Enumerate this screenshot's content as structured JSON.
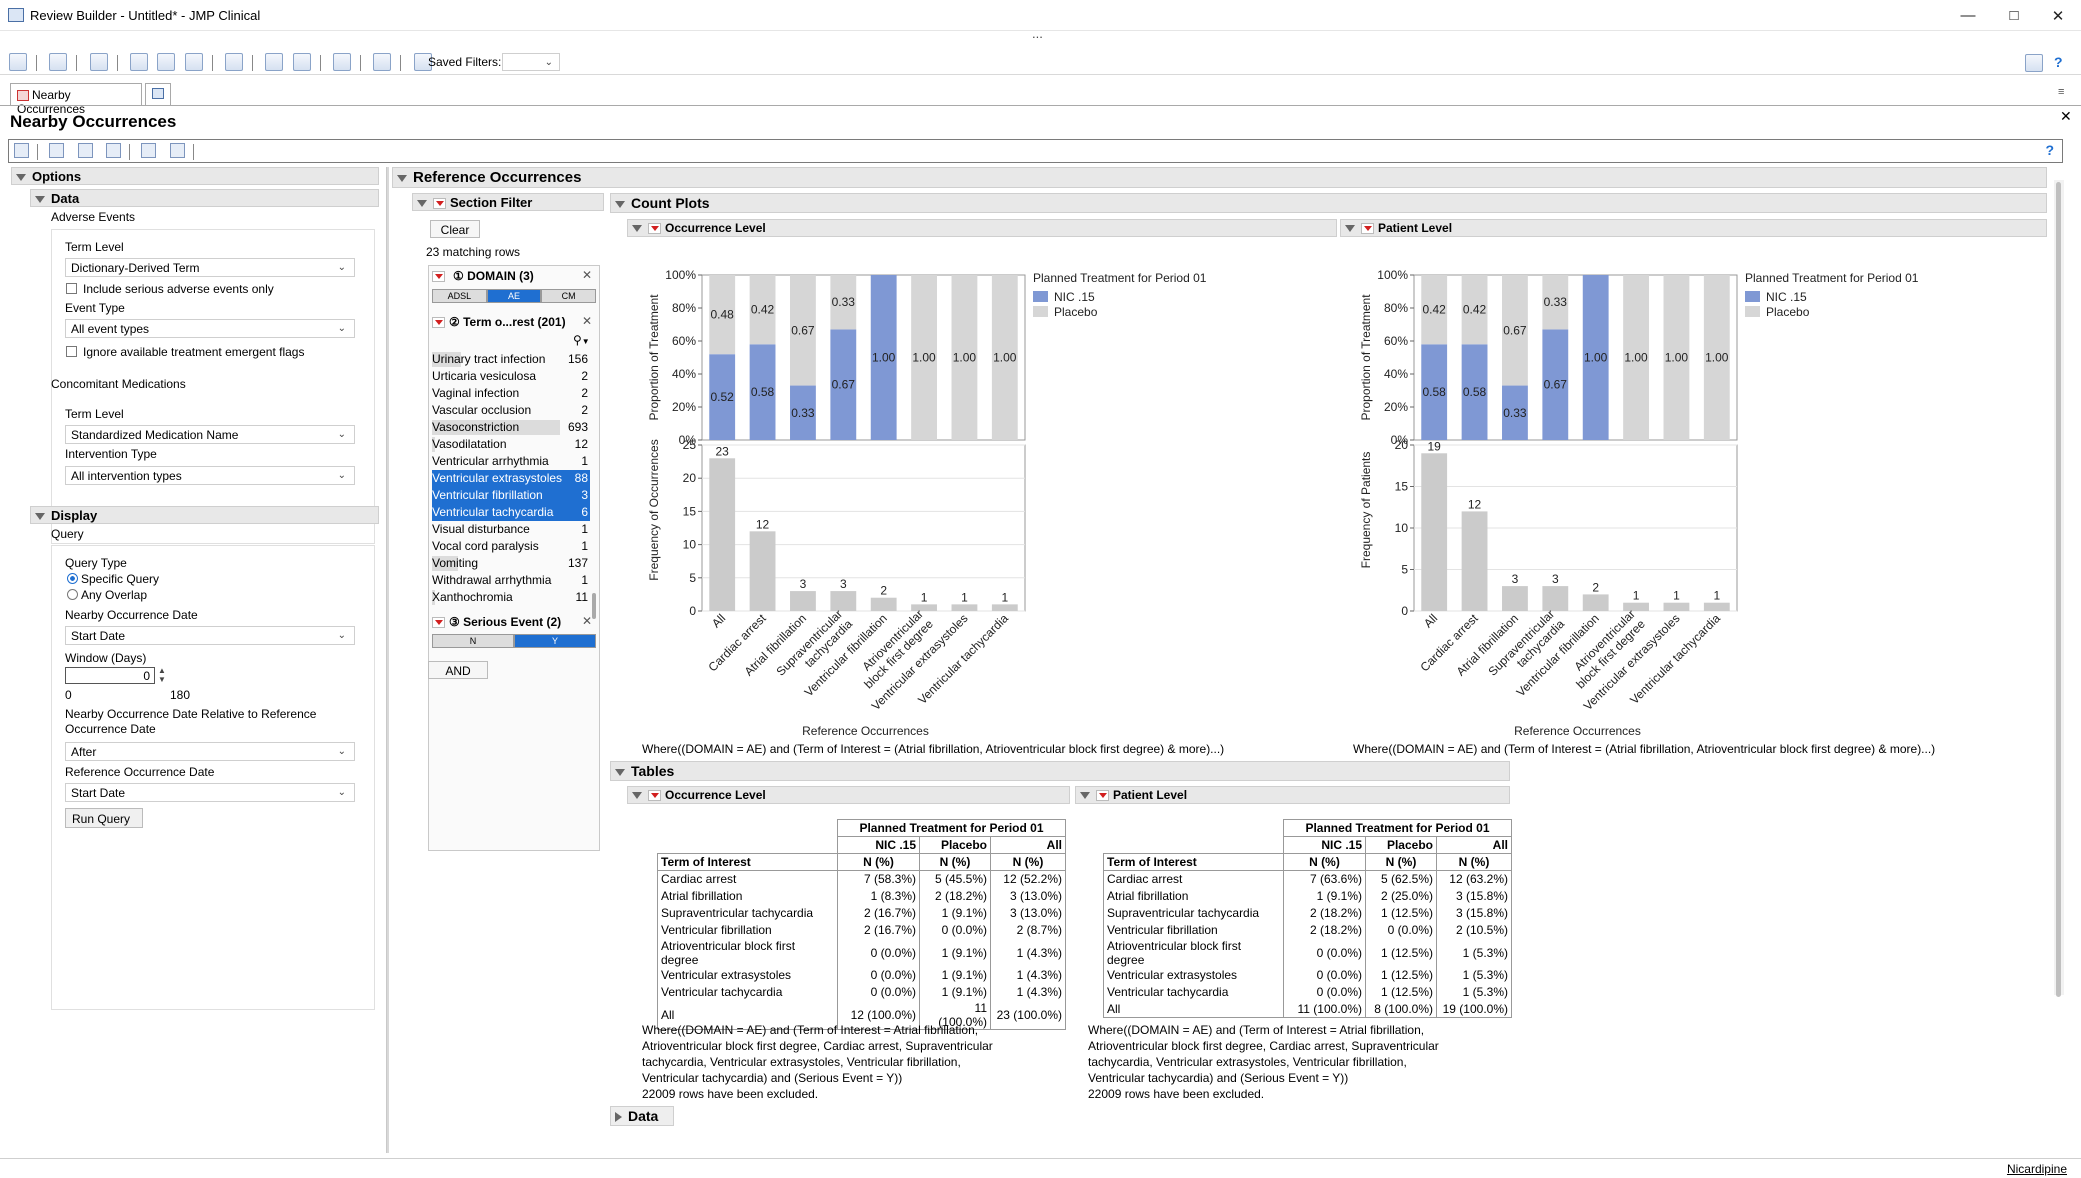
{
  "window": {
    "title": "Review Builder - Untitled* - JMP Clinical",
    "dots": "..."
  },
  "toolbar": {
    "saved_filters_label": "Saved Filters:"
  },
  "tabs": [
    {
      "label": "Nearby Occurrences"
    }
  ],
  "page": {
    "title": "Nearby Occurrences"
  },
  "options": {
    "header": "Options",
    "data_header": "Data",
    "adverse_events_label": "Adverse Events",
    "ae_term_level_label": "Term Level",
    "ae_term_level_value": "Dictionary-Derived Term",
    "serious_only_label": "Include serious adverse events only",
    "event_type_label": "Event Type",
    "event_type_value": "All event types",
    "ignore_flags_label": "Ignore available treatment emergent flags",
    "conmed_label": "Concomitant Medications",
    "cm_term_level_label": "Term Level",
    "cm_term_level_value": "Standardized Medication Name",
    "intervention_type_label": "Intervention Type",
    "intervention_type_value": "All intervention types",
    "display_header": "Display",
    "query_label": "Query",
    "query_type_label": "Query Type",
    "query_specific": "Specific Query",
    "query_any": "Any Overlap",
    "nearby_date_label": "Nearby Occurrence Date",
    "nearby_date_value": "Start Date",
    "window_label": "Window (Days)",
    "window_value": "0",
    "window_min": "0",
    "window_max": "180",
    "relative_label": "Nearby Occurrence Date Relative to Reference Occurrence Date",
    "relative_value": "After",
    "ref_date_label": "Reference Occurrence Date",
    "ref_date_value": "Start Date",
    "run_button": "Run Query"
  },
  "ref": {
    "header": "Reference Occurrences"
  },
  "filter": {
    "header": "Section Filter",
    "clear": "Clear",
    "matching": "23 matching rows",
    "domain_header": "DOMAIN (3)",
    "domain_buttons": [
      "ADSL",
      "AE",
      "CM"
    ],
    "term_header": "Term o...rest (201)",
    "terms": [
      {
        "label": "Urinary tract infection",
        "count": "156",
        "sel": false,
        "frac": 0.23
      },
      {
        "label": "Urticaria vesiculosa",
        "count": "2",
        "sel": false,
        "frac": 0.0
      },
      {
        "label": "Vaginal infection",
        "count": "2",
        "sel": false,
        "frac": 0.0
      },
      {
        "label": "Vascular occlusion",
        "count": "2",
        "sel": false,
        "frac": 0.0
      },
      {
        "label": "Vasoconstriction",
        "count": "693",
        "sel": false,
        "frac": 1.0
      },
      {
        "label": "Vasodilatation",
        "count": "12",
        "sel": false,
        "frac": 0.02
      },
      {
        "label": "Ventricular arrhythmia",
        "count": "1",
        "sel": false,
        "frac": 0.0
      },
      {
        "label": "Ventricular extrasystoles",
        "count": "88",
        "sel": true,
        "frac": 0.13
      },
      {
        "label": "Ventricular fibrillation",
        "count": "3",
        "sel": true,
        "frac": 0.0
      },
      {
        "label": "Ventricular tachycardia",
        "count": "6",
        "sel": true,
        "frac": 0.01
      },
      {
        "label": "Visual disturbance",
        "count": "1",
        "sel": false,
        "frac": 0.0
      },
      {
        "label": "Vocal cord paralysis",
        "count": "1",
        "sel": false,
        "frac": 0.0
      },
      {
        "label": "Vomiting",
        "count": "137",
        "sel": false,
        "frac": 0.2
      },
      {
        "label": "Withdrawal arrhythmia",
        "count": "1",
        "sel": false,
        "frac": 0.0
      },
      {
        "label": "Xanthochromia",
        "count": "11",
        "sel": false,
        "frac": 0.02
      }
    ],
    "serious_header": "Serious Event (2)",
    "serious_buttons": [
      "N",
      "Y"
    ],
    "and_button": "AND"
  },
  "count_plots": {
    "header": "Count Plots",
    "occ_header": "Occurrence Level",
    "pat_header": "Patient Level",
    "where_text": "Where((DOMAIN = AE) and (Term of Interest = (Atrial fibrillation, Atrioventricular block first degree) & more)...)"
  },
  "chart_data": [
    {
      "type": "bar",
      "title": "Occurrence Level",
      "xlabel": "Reference Occurrences",
      "ylabel_top": "Proportion of Treatment",
      "ylabel_bottom": "Frequency of Occurrences",
      "legend_title": "Planned Treatment for Period 01",
      "legend": [
        "NIC .15",
        "Placebo"
      ],
      "colors": {
        "NIC .15": "#7f98d4",
        "Placebo": "#d6d6d6",
        "Frequency": "#cbcbcb"
      },
      "categories": [
        "All",
        "Cardiac arrest",
        "Atrial fibrillation",
        "Supraventricular tachycardia",
        "Ventricular fibrillation",
        "Atrioventricular block first degree",
        "Ventricular extrasystoles",
        "Ventricular tachycardia"
      ],
      "category_labels": [
        [
          "All"
        ],
        [
          "Cardiac arrest"
        ],
        [
          "Atrial fibrillation"
        ],
        [
          "Supraventricular",
          "tachycardia"
        ],
        [
          "Ventricular fibrillation"
        ],
        [
          "Atrioventricular",
          "block first degree"
        ],
        [
          "Ventricular extrasystoles"
        ],
        [
          "Ventricular tachycardia"
        ]
      ],
      "series": [
        {
          "name": "NIC .15",
          "values": [
            0.52,
            0.58,
            0.33,
            0.67,
            1.0,
            0,
            0,
            0
          ]
        },
        {
          "name": "Placebo",
          "values": [
            0.48,
            0.42,
            0.67,
            0.33,
            0,
            1.0,
            1.0,
            1.0
          ]
        }
      ],
      "top_labels": [
        [
          "0.52",
          "0.48"
        ],
        [
          "0.58",
          "0.42"
        ],
        [
          "0.33",
          "0.67"
        ],
        [
          "0.67",
          "0.33"
        ],
        [
          "1.00",
          ""
        ],
        [
          "",
          "1.00"
        ],
        [
          "",
          "1.00"
        ],
        [
          "",
          "1.00"
        ]
      ],
      "top_ticks": [
        "0%",
        "20%",
        "40%",
        "60%",
        "80%",
        "100%"
      ],
      "frequency": [
        23,
        12,
        3,
        3,
        2,
        1,
        1,
        1
      ],
      "ylim_bottom": [
        0,
        25
      ],
      "bottom_ticks": [
        0,
        5,
        10,
        15,
        20,
        25
      ]
    },
    {
      "type": "bar",
      "title": "Patient Level",
      "xlabel": "Reference Occurrences",
      "ylabel_top": "Proportion of Treatment",
      "ylabel_bottom": "Frequency of Patients",
      "legend_title": "Planned Treatment for Period 01",
      "legend": [
        "NIC .15",
        "Placebo"
      ],
      "colors": {
        "NIC .15": "#7f98d4",
        "Placebo": "#d6d6d6",
        "Frequency": "#cbcbcb"
      },
      "categories": [
        "All",
        "Cardiac arrest",
        "Atrial fibrillation",
        "Supraventricular tachycardia",
        "Ventricular fibrillation",
        "Atrioventricular block first degree",
        "Ventricular extrasystoles",
        "Ventricular tachycardia"
      ],
      "category_labels": [
        [
          "All"
        ],
        [
          "Cardiac arrest"
        ],
        [
          "Atrial fibrillation"
        ],
        [
          "Supraventricular",
          "tachycardia"
        ],
        [
          "Ventricular fibrillation"
        ],
        [
          "Atrioventricular",
          "block first degree"
        ],
        [
          "Ventricular extrasystoles"
        ],
        [
          "Ventricular tachycardia"
        ]
      ],
      "series": [
        {
          "name": "NIC .15",
          "values": [
            0.58,
            0.58,
            0.33,
            0.67,
            1.0,
            0,
            0,
            0
          ]
        },
        {
          "name": "Placebo",
          "values": [
            0.42,
            0.42,
            0.67,
            0.33,
            0,
            1.0,
            1.0,
            1.0
          ]
        }
      ],
      "top_labels": [
        [
          "0.58",
          "0.42"
        ],
        [
          "0.58",
          "0.42"
        ],
        [
          "0.33",
          "0.67"
        ],
        [
          "0.67",
          "0.33"
        ],
        [
          "1.00",
          ""
        ],
        [
          "",
          "1.00"
        ],
        [
          "",
          "1.00"
        ],
        [
          "",
          "1.00"
        ]
      ],
      "top_ticks": [
        "0%",
        "20%",
        "40%",
        "60%",
        "80%",
        "100%"
      ],
      "frequency": [
        19,
        12,
        3,
        3,
        2,
        1,
        1,
        1
      ],
      "ylim_bottom": [
        0,
        20
      ],
      "bottom_ticks": [
        0,
        5,
        10,
        15,
        20
      ]
    }
  ],
  "tables": {
    "header": "Tables",
    "occ_header": "Occurrence Level",
    "pat_header": "Patient Level",
    "group_header": "Planned Treatment for Period 01",
    "col_groups": [
      "NIC .15",
      "Placebo",
      "All"
    ],
    "row_header": "Term of Interest",
    "stat": "N (%)",
    "occ_rows": [
      [
        "Cardiac arrest",
        "7 (58.3%)",
        "5 (45.5%)",
        "12 (52.2%)"
      ],
      [
        "Atrial fibrillation",
        "1 (8.3%)",
        "2 (18.2%)",
        "3 (13.0%)"
      ],
      [
        "Supraventricular tachycardia",
        "2 (16.7%)",
        "1 (9.1%)",
        "3 (13.0%)"
      ],
      [
        "Ventricular fibrillation",
        "2 (16.7%)",
        "0 (0.0%)",
        "2 (8.7%)"
      ],
      [
        "Atrioventricular block first degree",
        "0 (0.0%)",
        "1 (9.1%)",
        "1 (4.3%)"
      ],
      [
        "Ventricular extrasystoles",
        "0 (0.0%)",
        "1 (9.1%)",
        "1 (4.3%)"
      ],
      [
        "Ventricular tachycardia",
        "0 (0.0%)",
        "1 (9.1%)",
        "1 (4.3%)"
      ],
      [
        "All",
        "12 (100.0%)",
        "11 (100.0%)",
        "23 (100.0%)"
      ]
    ],
    "pat_rows": [
      [
        "Cardiac arrest",
        "7 (63.6%)",
        "5 (62.5%)",
        "12 (63.2%)"
      ],
      [
        "Atrial fibrillation",
        "1 (9.1%)",
        "2 (25.0%)",
        "3 (15.8%)"
      ],
      [
        "Supraventricular tachycardia",
        "2 (18.2%)",
        "1 (12.5%)",
        "3 (15.8%)"
      ],
      [
        "Ventricular fibrillation",
        "2 (18.2%)",
        "0 (0.0%)",
        "2 (10.5%)"
      ],
      [
        "Atrioventricular block first degree",
        "0 (0.0%)",
        "1 (12.5%)",
        "1 (5.3%)"
      ],
      [
        "Ventricular extrasystoles",
        "0 (0.0%)",
        "1 (12.5%)",
        "1 (5.3%)"
      ],
      [
        "Ventricular tachycardia",
        "0 (0.0%)",
        "1 (12.5%)",
        "1 (5.3%)"
      ],
      [
        "All",
        "11 (100.0%)",
        "8 (100.0%)",
        "19 (100.0%)"
      ]
    ],
    "where_lines": [
      "Where((DOMAIN = AE) and (Term of Interest = Atrial fibrillation,",
      "Atrioventricular block first degree, Cardiac arrest, Supraventricular",
      "tachycardia, Ventricular extrasystoles, Ventricular fibrillation,",
      "Ventricular tachycardia) and (Serious Event = Y))",
      "22009 rows have been excluded."
    ]
  },
  "data_section": {
    "header": "Data"
  },
  "status": {
    "user": "Nicardipine"
  }
}
